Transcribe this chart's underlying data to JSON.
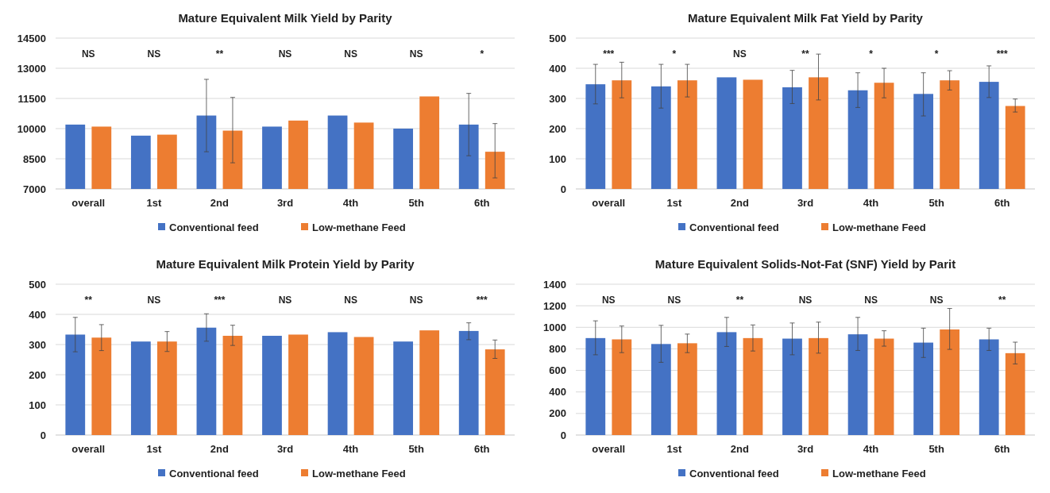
{
  "chart_data": [
    {
      "type": "bar",
      "title": "Mature Equivalent Milk Yield by Parity",
      "categories": [
        "overall",
        "1st",
        "2nd",
        "3rd",
        "4th",
        "5th",
        "6th"
      ],
      "ylim": [
        7000,
        14500
      ],
      "yticks": [
        7000,
        8500,
        10000,
        11500,
        13000,
        14500
      ],
      "grid": "y",
      "legend": "bottom",
      "series": [
        {
          "name": "Conventional feed",
          "color": "#4472c4",
          "values": [
            10200,
            9650,
            10650,
            10100,
            10650,
            10000,
            10200
          ],
          "errors": [
            null,
            null,
            [
              8850,
              12450
            ],
            null,
            null,
            null,
            [
              8650,
              11750
            ]
          ]
        },
        {
          "name": "Low-methane Feed",
          "color": "#ed7d31",
          "values": [
            10100,
            9700,
            9900,
            10400,
            10300,
            11600,
            8850
          ],
          "errors": [
            null,
            null,
            [
              8300,
              11550
            ],
            null,
            null,
            null,
            [
              7550,
              10250
            ]
          ]
        }
      ],
      "annotations": [
        "NS",
        "NS",
        "**",
        "NS",
        "NS",
        "NS",
        "*"
      ]
    },
    {
      "type": "bar",
      "title": "Mature Equivalent Milk Fat Yield by Parity",
      "categories": [
        "overall",
        "1st",
        "2nd",
        "3rd",
        "4th",
        "5th",
        "6th"
      ],
      "ylim": [
        0,
        500
      ],
      "yticks": [
        0,
        100,
        200,
        300,
        400,
        500
      ],
      "grid": "y",
      "legend": "bottom",
      "series": [
        {
          "name": "Conventional feed",
          "color": "#4472c4",
          "values": [
            347,
            340,
            370,
            337,
            327,
            315,
            355
          ],
          "errors": [
            [
              282,
              413
            ],
            [
              268,
              413
            ],
            null,
            [
              283,
              393
            ],
            [
              270,
              385
            ],
            [
              242,
              385
            ],
            [
              303,
              408
            ]
          ]
        },
        {
          "name": "Low-methane Feed",
          "color": "#ed7d31",
          "values": [
            360,
            360,
            362,
            370,
            352,
            360,
            275
          ],
          "errors": [
            [
              302,
              420
            ],
            [
              305,
              413
            ],
            null,
            [
              295,
              447
            ],
            [
              302,
              400
            ],
            [
              328,
              392
            ],
            [
              255,
              298
            ]
          ]
        }
      ],
      "annotations": [
        "***",
        "*",
        "NS",
        "**",
        "*",
        "*",
        "***"
      ]
    },
    {
      "type": "bar",
      "title": "Mature Equivalent Milk Protein Yield by Parity",
      "categories": [
        "overall",
        "1st",
        "2nd",
        "3rd",
        "4th",
        "5th",
        "6th"
      ],
      "ylim": [
        0,
        500
      ],
      "yticks": [
        0,
        100,
        200,
        300,
        400,
        500
      ],
      "grid": "y",
      "legend": "bottom",
      "series": [
        {
          "name": "Conventional feed",
          "color": "#4472c4",
          "values": [
            333,
            310,
            356,
            329,
            341,
            310,
            345
          ],
          "errors": [
            [
              276,
              390
            ],
            null,
            [
              311,
              402
            ],
            null,
            null,
            null,
            [
              316,
              372
            ]
          ]
        },
        {
          "name": "Low-methane Feed",
          "color": "#ed7d31",
          "values": [
            323,
            310,
            329,
            333,
            325,
            347,
            284
          ],
          "errors": [
            [
              280,
              366
            ],
            [
              277,
              343
            ],
            [
              297,
              364
            ],
            null,
            null,
            null,
            [
              254,
              315
            ]
          ]
        }
      ],
      "annotations": [
        "**",
        "NS",
        "***",
        "NS",
        "NS",
        "NS",
        "***"
      ]
    },
    {
      "type": "bar",
      "title": "Mature Equivalent Solids-Not-Fat (SNF) Yield by Parit",
      "categories": [
        "overall",
        "1st",
        "2nd",
        "3rd",
        "4th",
        "5th",
        "6th"
      ],
      "ylim": [
        0,
        1400
      ],
      "yticks": [
        0,
        200,
        400,
        600,
        800,
        1000,
        1200,
        1400
      ],
      "grid": "y",
      "legend": "bottom",
      "series": [
        {
          "name": "Conventional feed",
          "color": "#4472c4",
          "values": [
            900,
            845,
            955,
            895,
            935,
            858,
            888
          ],
          "errors": [
            [
              745,
              1060
            ],
            [
              675,
              1018
            ],
            [
              822,
              1092
            ],
            [
              745,
              1040
            ],
            [
              785,
              1092
            ],
            [
              720,
              992
            ],
            [
              785,
              992
            ]
          ]
        },
        {
          "name": "Low-methane Feed",
          "color": "#ed7d31",
          "values": [
            888,
            852,
            900,
            900,
            895,
            980,
            760
          ],
          "errors": [
            [
              765,
              1012
            ],
            [
              765,
              937
            ],
            [
              780,
              1022
            ],
            [
              760,
              1048
            ],
            [
              825,
              968
            ],
            [
              795,
              1175
            ],
            [
              660,
              862
            ]
          ]
        }
      ],
      "annotations": [
        "NS",
        "NS",
        "**",
        "NS",
        "NS",
        "NS",
        "**"
      ]
    }
  ]
}
